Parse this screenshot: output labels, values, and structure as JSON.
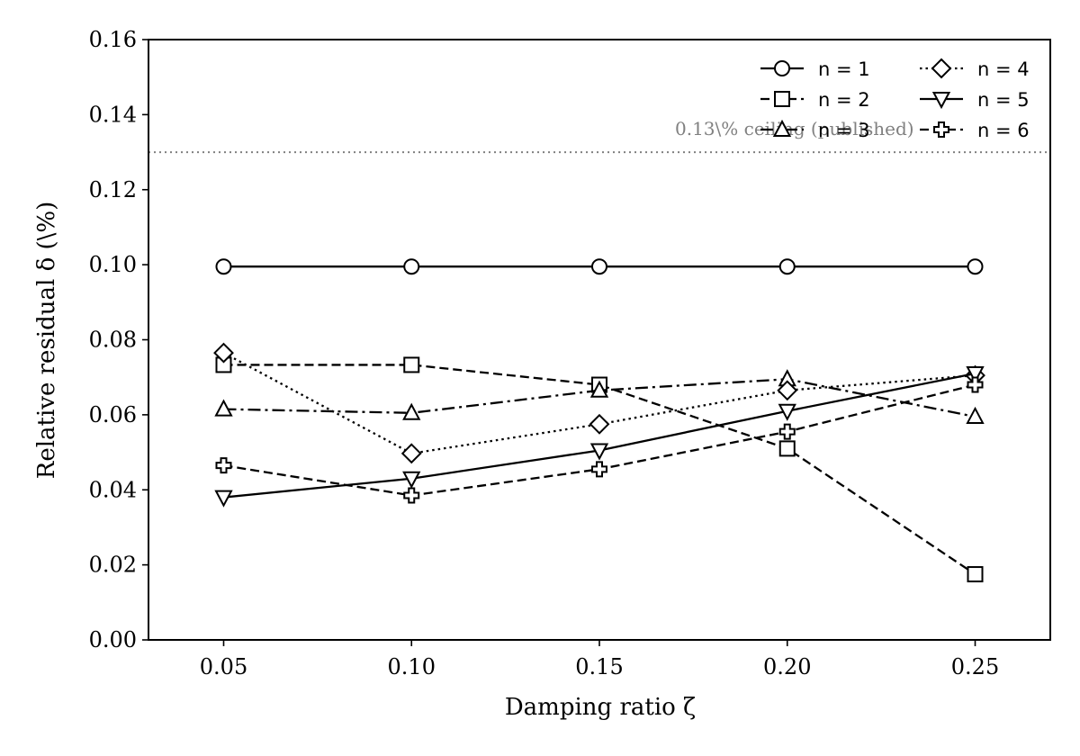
{
  "chart_data": {
    "type": "line",
    "title": "",
    "xlabel": "Damping ratio ζ",
    "ylabel": "Relative residual δ (\\%)",
    "xlim": [
      0.03,
      0.27
    ],
    "ylim": [
      0.0,
      0.16
    ],
    "x": [
      0.05,
      0.1,
      0.15,
      0.2,
      0.25
    ],
    "x_tick_labels": [
      "0.05",
      "0.10",
      "0.15",
      "0.20",
      "0.25"
    ],
    "y_ticks": [
      0.0,
      0.02,
      0.04,
      0.06,
      0.08,
      0.1,
      0.12,
      0.14,
      0.16
    ],
    "y_tick_labels": [
      "0.00",
      "0.02",
      "0.04",
      "0.06",
      "0.08",
      "0.10",
      "0.12",
      "0.14",
      "0.16"
    ],
    "grid": false,
    "legend_position": "top-right",
    "reference_line": {
      "y": 0.13,
      "label": "0.13\\% ceiling (published)",
      "color": "#808080",
      "style": "dotted"
    },
    "series": [
      {
        "name": "n = 1",
        "marker": "circle",
        "dash": "solid",
        "values": [
          0.0995,
          0.0995,
          0.0995,
          0.0995,
          0.0995
        ]
      },
      {
        "name": "n = 2",
        "marker": "square",
        "dash": "dashed",
        "values": [
          0.0733,
          0.0733,
          0.068,
          0.051,
          0.0175
        ]
      },
      {
        "name": "n = 3",
        "marker": "triangle-up",
        "dash": "dashdot",
        "values": [
          0.0615,
          0.0605,
          0.0665,
          0.0695,
          0.0595
        ]
      },
      {
        "name": "n = 4",
        "marker": "diamond",
        "dash": "dotted",
        "values": [
          0.0765,
          0.0497,
          0.0575,
          0.0665,
          0.0705
        ]
      },
      {
        "name": "n = 5",
        "marker": "triangle-down",
        "dash": "solid",
        "values": [
          0.038,
          0.043,
          0.0505,
          0.061,
          0.071
        ]
      },
      {
        "name": "n = 6",
        "marker": "plus",
        "dash": "dashed",
        "values": [
          0.0465,
          0.0385,
          0.0455,
          0.0555,
          0.068
        ]
      }
    ]
  }
}
